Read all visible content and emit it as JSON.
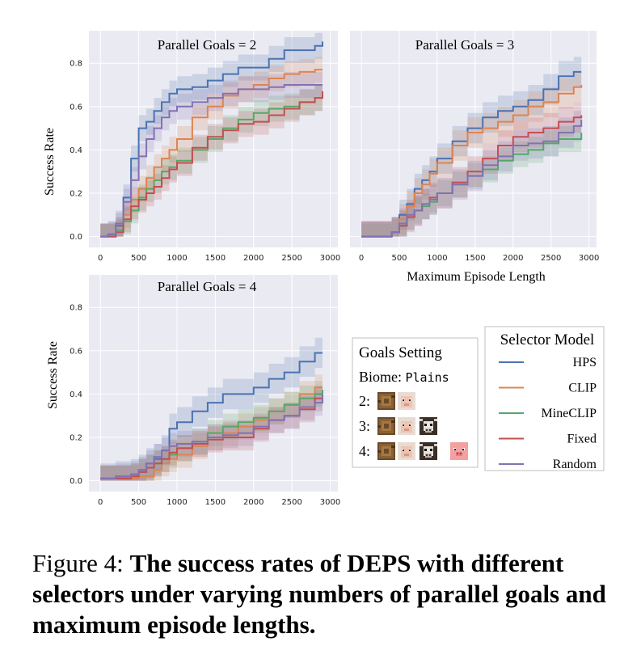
{
  "chart_data": [
    {
      "type": "line",
      "title": "Parallel Goals = 2",
      "xlabel": "",
      "ylabel": "Success Rate",
      "xlim": [
        -150,
        3100
      ],
      "ylim": [
        -0.05,
        0.95
      ],
      "xticks": [
        0,
        500,
        1000,
        1500,
        2000,
        2500,
        3000
      ],
      "yticks": [
        0.0,
        0.2,
        0.4,
        0.6,
        0.8
      ],
      "ytick_labels": [
        "0.0",
        "0.2",
        "0.4",
        "0.6",
        "0.8"
      ],
      "grid": true,
      "series": [
        {
          "name": "HPS",
          "x": [
            0,
            100,
            200,
            300,
            400,
            500,
            600,
            700,
            800,
            900,
            1000,
            1200,
            1400,
            1600,
            1800,
            2000,
            2200,
            2400,
            2600,
            2800,
            2900
          ],
          "y": [
            0,
            0.01,
            0.05,
            0.18,
            0.36,
            0.5,
            0.53,
            0.58,
            0.62,
            0.66,
            0.68,
            0.69,
            0.72,
            0.75,
            0.78,
            0.78,
            0.82,
            0.86,
            0.86,
            0.88,
            0.9
          ],
          "band": 0.06
        },
        {
          "name": "CLIP",
          "x": [
            0,
            100,
            200,
            300,
            400,
            500,
            600,
            700,
            800,
            900,
            1000,
            1200,
            1400,
            1600,
            1800,
            2000,
            2200,
            2400,
            2600,
            2800,
            2900
          ],
          "y": [
            0,
            0,
            0.03,
            0.1,
            0.17,
            0.22,
            0.27,
            0.32,
            0.36,
            0.4,
            0.45,
            0.55,
            0.6,
            0.65,
            0.68,
            0.7,
            0.73,
            0.75,
            0.76,
            0.77,
            0.77
          ],
          "band": 0.06
        },
        {
          "name": "MineCLIP",
          "x": [
            0,
            100,
            200,
            300,
            400,
            500,
            600,
            700,
            800,
            900,
            1000,
            1200,
            1400,
            1600,
            1800,
            2000,
            2200,
            2400,
            2600,
            2800,
            2900
          ],
          "y": [
            0,
            0,
            0.03,
            0.07,
            0.12,
            0.18,
            0.22,
            0.26,
            0.3,
            0.32,
            0.35,
            0.4,
            0.45,
            0.5,
            0.54,
            0.57,
            0.59,
            0.6,
            0.62,
            0.64,
            0.67
          ],
          "band": 0.06
        },
        {
          "name": "Fixed",
          "x": [
            0,
            100,
            200,
            300,
            400,
            500,
            600,
            700,
            800,
            900,
            1000,
            1200,
            1400,
            1600,
            1800,
            2000,
            2200,
            2400,
            2600,
            2800,
            2900
          ],
          "y": [
            0,
            0,
            0.02,
            0.08,
            0.14,
            0.17,
            0.2,
            0.23,
            0.27,
            0.31,
            0.34,
            0.41,
            0.46,
            0.49,
            0.52,
            0.53,
            0.56,
            0.59,
            0.62,
            0.64,
            0.67
          ],
          "band": 0.06
        },
        {
          "name": "Random",
          "x": [
            0,
            100,
            200,
            300,
            400,
            500,
            600,
            700,
            800,
            900,
            1000,
            1200,
            1400,
            1600,
            1800,
            2000,
            2200,
            2400,
            2600,
            2800,
            2900
          ],
          "y": [
            0,
            0.01,
            0.06,
            0.16,
            0.26,
            0.37,
            0.45,
            0.5,
            0.55,
            0.58,
            0.6,
            0.62,
            0.64,
            0.66,
            0.68,
            0.68,
            0.69,
            0.7,
            0.7,
            0.7,
            0.7
          ],
          "band": 0.06
        }
      ]
    },
    {
      "type": "line",
      "title": "Parallel Goals = 3",
      "xlabel": "Maximum Episode Length",
      "ylabel": "",
      "xlim": [
        -150,
        3100
      ],
      "ylim": [
        -0.05,
        0.95
      ],
      "xticks": [
        0,
        500,
        1000,
        1500,
        2000,
        2500,
        3000
      ],
      "yticks": [
        0.0,
        0.2,
        0.4,
        0.6,
        0.8
      ],
      "grid": true,
      "series": [
        {
          "name": "HPS",
          "x": [
            0,
            200,
            400,
            500,
            600,
            700,
            800,
            900,
            1000,
            1200,
            1400,
            1600,
            1800,
            2000,
            2200,
            2400,
            2600,
            2800,
            2900
          ],
          "y": [
            0,
            0,
            0.02,
            0.1,
            0.15,
            0.22,
            0.26,
            0.3,
            0.36,
            0.44,
            0.5,
            0.55,
            0.58,
            0.6,
            0.63,
            0.68,
            0.74,
            0.76,
            0.76
          ],
          "band": 0.07
        },
        {
          "name": "CLIP",
          "x": [
            0,
            200,
            400,
            500,
            600,
            700,
            800,
            900,
            1000,
            1200,
            1400,
            1600,
            1800,
            2000,
            2200,
            2400,
            2600,
            2800,
            2900
          ],
          "y": [
            0,
            0,
            0.02,
            0.08,
            0.14,
            0.2,
            0.24,
            0.29,
            0.34,
            0.42,
            0.48,
            0.5,
            0.53,
            0.56,
            0.6,
            0.62,
            0.66,
            0.69,
            0.7
          ],
          "band": 0.07
        },
        {
          "name": "MineCLIP",
          "x": [
            0,
            200,
            400,
            500,
            600,
            700,
            800,
            900,
            1000,
            1200,
            1400,
            1600,
            1800,
            2000,
            2200,
            2400,
            2600,
            2800,
            2900
          ],
          "y": [
            0,
            0,
            0.02,
            0.05,
            0.09,
            0.12,
            0.14,
            0.16,
            0.2,
            0.24,
            0.28,
            0.31,
            0.35,
            0.38,
            0.4,
            0.43,
            0.45,
            0.45,
            0.48
          ],
          "band": 0.06
        },
        {
          "name": "Fixed",
          "x": [
            0,
            200,
            400,
            500,
            600,
            700,
            800,
            900,
            1000,
            1200,
            1400,
            1600,
            1800,
            2000,
            2200,
            2400,
            2600,
            2800,
            2900
          ],
          "y": [
            0,
            0,
            0.02,
            0.05,
            0.09,
            0.12,
            0.15,
            0.18,
            0.2,
            0.25,
            0.3,
            0.36,
            0.42,
            0.46,
            0.48,
            0.5,
            0.53,
            0.55,
            0.56
          ],
          "band": 0.07
        },
        {
          "name": "Random",
          "x": [
            0,
            200,
            400,
            500,
            600,
            700,
            800,
            900,
            1000,
            1200,
            1400,
            1600,
            1800,
            2000,
            2200,
            2400,
            2600,
            2800,
            2900
          ],
          "y": [
            0,
            0,
            0.02,
            0.06,
            0.1,
            0.12,
            0.15,
            0.17,
            0.2,
            0.24,
            0.28,
            0.33,
            0.37,
            0.42,
            0.43,
            0.44,
            0.48,
            0.51,
            0.54
          ],
          "band": 0.07
        }
      ]
    },
    {
      "type": "line",
      "title": "Parallel Goals = 4",
      "xlabel": "",
      "ylabel": "Success Rate",
      "xlim": [
        -150,
        3100
      ],
      "ylim": [
        -0.05,
        0.95
      ],
      "xticks": [
        0,
        500,
        1000,
        1500,
        2000,
        2500,
        3000
      ],
      "yticks": [
        0.0,
        0.2,
        0.4,
        0.6,
        0.8
      ],
      "grid": true,
      "series": [
        {
          "name": "HPS",
          "x": [
            0,
            200,
            400,
            500,
            600,
            700,
            800,
            900,
            1000,
            1200,
            1400,
            1600,
            1800,
            2000,
            2200,
            2400,
            2600,
            2800,
            2900
          ],
          "y": [
            0.01,
            0.02,
            0.03,
            0.05,
            0.08,
            0.1,
            0.14,
            0.24,
            0.27,
            0.32,
            0.36,
            0.4,
            0.4,
            0.43,
            0.47,
            0.5,
            0.55,
            0.59,
            0.59
          ],
          "band": 0.07
        },
        {
          "name": "CLIP",
          "x": [
            0,
            200,
            400,
            500,
            600,
            700,
            800,
            900,
            1000,
            1200,
            1400,
            1600,
            1800,
            2000,
            2200,
            2400,
            2600,
            2800,
            2900
          ],
          "y": [
            0.01,
            0.01,
            0.01,
            0.02,
            0.02,
            0.05,
            0.08,
            0.1,
            0.12,
            0.16,
            0.2,
            0.22,
            0.25,
            0.28,
            0.32,
            0.35,
            0.4,
            0.43,
            0.43
          ],
          "band": 0.06
        },
        {
          "name": "MineCLIP",
          "x": [
            0,
            200,
            400,
            500,
            600,
            700,
            800,
            900,
            1000,
            1200,
            1400,
            1600,
            1800,
            2000,
            2200,
            2400,
            2600,
            2800,
            2900
          ],
          "y": [
            0.01,
            0.01,
            0.02,
            0.04,
            0.06,
            0.08,
            0.1,
            0.12,
            0.15,
            0.18,
            0.22,
            0.25,
            0.27,
            0.29,
            0.32,
            0.35,
            0.38,
            0.4,
            0.42
          ],
          "band": 0.06
        },
        {
          "name": "Fixed",
          "x": [
            0,
            200,
            400,
            500,
            600,
            700,
            800,
            900,
            1000,
            1200,
            1400,
            1600,
            1800,
            2000,
            2200,
            2400,
            2600,
            2800,
            2900
          ],
          "y": [
            0.01,
            0.01,
            0.02,
            0.04,
            0.06,
            0.08,
            0.1,
            0.13,
            0.15,
            0.17,
            0.19,
            0.2,
            0.2,
            0.24,
            0.28,
            0.3,
            0.33,
            0.38,
            0.39
          ],
          "band": 0.06
        },
        {
          "name": "Random",
          "x": [
            0,
            200,
            400,
            500,
            600,
            700,
            800,
            900,
            1000,
            1200,
            1400,
            1600,
            1800,
            2000,
            2200,
            2400,
            2600,
            2800,
            2900
          ],
          "y": [
            0.01,
            0.02,
            0.03,
            0.05,
            0.08,
            0.11,
            0.14,
            0.16,
            0.17,
            0.18,
            0.2,
            0.21,
            0.22,
            0.25,
            0.28,
            0.3,
            0.34,
            0.36,
            0.4
          ],
          "band": 0.06
        }
      ]
    }
  ],
  "colors": {
    "HPS": "#4c72b0",
    "CLIP": "#dd8452",
    "MineCLIP": "#55a868",
    "Fixed": "#c44e52",
    "Random": "#8172b3",
    "panel_bg": "#eaeaf2"
  },
  "goals_legend": {
    "title": "Goals Setting",
    "biome_label": "Biome:",
    "biome_value": "Plains",
    "rows": [
      {
        "label": "2:",
        "icons": [
          "log-icon",
          "sheep-icon"
        ]
      },
      {
        "label": "3:",
        "icons": [
          "log-icon",
          "sheep-icon",
          "cow-icon"
        ]
      },
      {
        "label": "4:",
        "icons": [
          "log-icon",
          "sheep-icon",
          "cow-icon",
          "pig-icon"
        ]
      }
    ]
  },
  "selector_legend": {
    "title": "Selector Model",
    "entries": [
      "HPS",
      "CLIP",
      "MineCLIP",
      "Fixed",
      "Random"
    ]
  },
  "caption": {
    "label": "Figure 4:",
    "text": "The success rates of DEPS with different selectors under varying numbers of parallel goals and maximum episode lengths."
  }
}
